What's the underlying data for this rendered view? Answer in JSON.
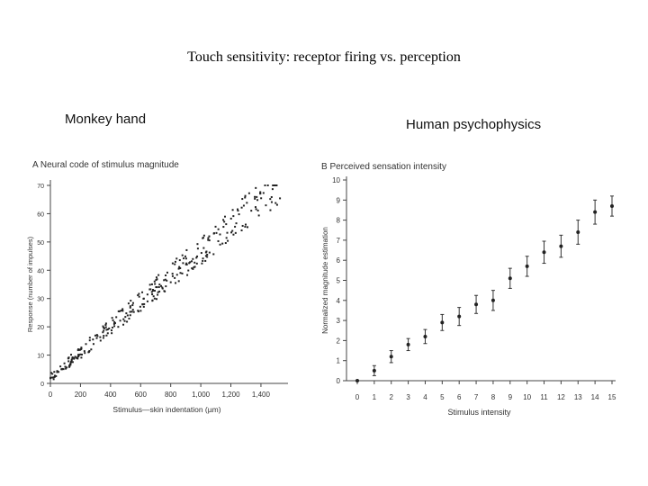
{
  "slide": {
    "title": "Touch sensitivity: receptor firing vs. perception",
    "left_caption": "Monkey hand",
    "right_caption": "Human psychophysics"
  },
  "chart_data": [
    {
      "type": "scatter",
      "title": "A  Neural code of stimulus magnitude",
      "xlabel": "Stimulus—skin indentation (µm)",
      "ylabel": "Response (number of impulses)",
      "xlim": [
        0,
        1550
      ],
      "ylim": [
        0,
        70
      ],
      "xticks": [
        0,
        200,
        400,
        600,
        800,
        1000,
        1200,
        1400
      ],
      "xtick_labels": [
        "0",
        "200",
        "400",
        "600",
        "800",
        "1,000",
        "1,200",
        "1,400"
      ],
      "yticks": [
        0,
        10,
        20,
        30,
        40,
        50,
        60,
        70
      ],
      "trend": {
        "x0": 0,
        "y0": 2,
        "slope": 0.045,
        "x_max": 1540
      },
      "scatter_points": 320,
      "scatter_seed": 7,
      "grid": false
    },
    {
      "type": "scatter",
      "title": "B  Perceived sensation intensity",
      "xlabel": "Stimulus intensity",
      "ylabel": "Normalized magnitude estimation",
      "xlim": [
        0,
        15
      ],
      "ylim": [
        0,
        10
      ],
      "xticks": [
        0,
        1,
        2,
        3,
        4,
        5,
        6,
        7,
        8,
        9,
        10,
        11,
        12,
        13,
        14,
        15
      ],
      "yticks": [
        0,
        1,
        2,
        3,
        4,
        5,
        6,
        7,
        8,
        9,
        10
      ],
      "x": [
        0,
        1,
        2,
        3,
        4,
        5,
        6,
        7,
        8,
        9,
        10,
        11,
        12,
        13,
        14,
        15
      ],
      "y": [
        0,
        0.5,
        1.2,
        1.8,
        2.2,
        2.9,
        3.2,
        3.8,
        4.0,
        5.1,
        5.7,
        6.4,
        6.7,
        7.4,
        8.4,
        8.7
      ],
      "error": [
        0,
        0.25,
        0.3,
        0.3,
        0.35,
        0.4,
        0.45,
        0.45,
        0.5,
        0.5,
        0.5,
        0.55,
        0.55,
        0.6,
        0.6,
        0.5
      ],
      "grid": false
    }
  ]
}
